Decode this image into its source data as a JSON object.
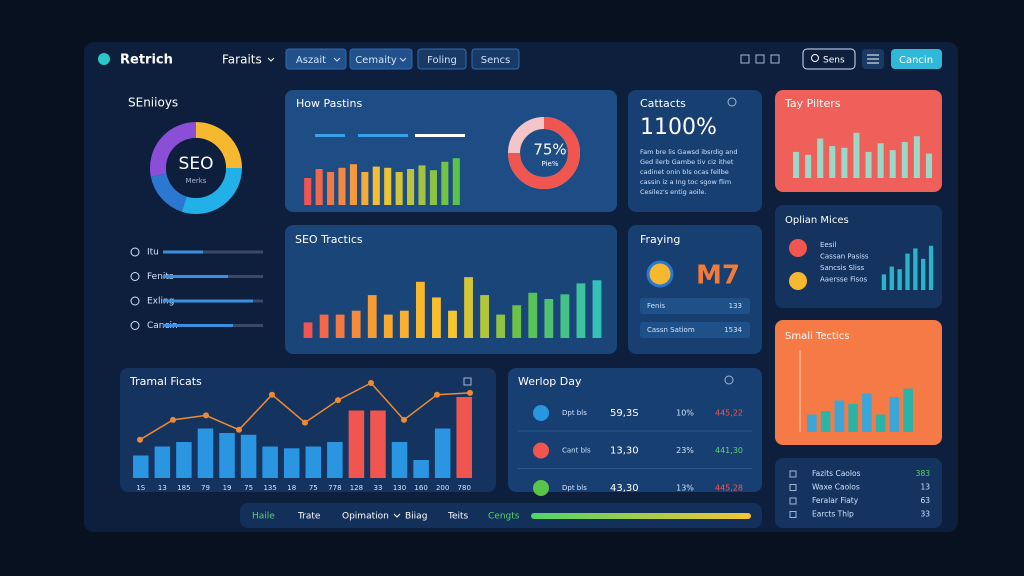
{
  "header": {
    "logo": "Retrich",
    "menu": "Faraits",
    "tabs": [
      "Aszait",
      "Cemaity",
      "Foling",
      "Sencs"
    ],
    "search": "Sens",
    "action": "Cancin"
  },
  "seo": {
    "title": "SEniioys",
    "donut_label": "SEO",
    "donut_sub": "Merks",
    "segments": [
      {
        "value": 25,
        "color": "#f5b82e"
      },
      {
        "value": 30,
        "color": "#22b0e8"
      },
      {
        "value": 17,
        "color": "#2a78d0"
      },
      {
        "value": 28,
        "color": "#8a4fd6"
      }
    ],
    "items": [
      {
        "label": "Itu",
        "value": 40
      },
      {
        "label": "Fenits",
        "value": 65
      },
      {
        "label": "Exling",
        "value": 90
      },
      {
        "label": "Cancin",
        "value": 70
      }
    ]
  },
  "how_pastins": {
    "title": "How Pastins",
    "bars": [
      45,
      60,
      55,
      62,
      68,
      55,
      64,
      62,
      55,
      60,
      66,
      58,
      72,
      78
    ],
    "colors": [
      "#f0564f",
      "#f7c531",
      "#5bc24a"
    ],
    "ring": {
      "value": 75,
      "label": "75%"
    },
    "ring_sub": "Pie%"
  },
  "cattacts": {
    "title": "Cattacts",
    "big": "1100%",
    "lines": [
      "Fam bre lis Gawsd ibsrdig and",
      "Ged ilerb Gambe tiv ciz ithet",
      "cadinet onin bls ocas fellbe",
      "cassin iz a Ing toc sgow flim",
      "Cesilez's entig aoile."
    ]
  },
  "tay_pilters": {
    "title": "Tay Pilters",
    "bars": [
      45,
      40,
      68,
      55,
      52,
      78,
      45,
      60,
      48,
      62,
      72,
      42
    ]
  },
  "seo_tractics": {
    "title": "SEO Tractics",
    "bars": [
      20,
      30,
      30,
      35,
      55,
      30,
      35,
      72,
      52,
      35,
      78,
      55,
      30,
      42,
      58,
      50,
      56,
      70,
      74
    ],
    "colors": [
      "#f0564f",
      "#f7a531",
      "#f7c531",
      "#5bc24a",
      "#34c2b8"
    ]
  },
  "fraying": {
    "title": "Fraying",
    "big": "M7",
    "rows": [
      {
        "label": "Fenis",
        "value": 133
      },
      {
        "label": "Cassn Satiom",
        "value": 1534
      }
    ]
  },
  "oplian": {
    "title": "Oplian Mices",
    "items": [
      "Eesil",
      "Cassan Pasiss",
      "Sancsis Sliss",
      "Aaersse Fisos"
    ],
    "bars": [
      30,
      45,
      40,
      70,
      80,
      60,
      85
    ]
  },
  "smali": {
    "title": "Smali Tectics",
    "bars": [
      25,
      30,
      45,
      40,
      55,
      25,
      50,
      62
    ],
    "colors": [
      "#3aa7d8",
      "#2bb3a8"
    ]
  },
  "tramal": {
    "title": "Tramal Ficats",
    "bars": [
      25,
      35,
      40,
      55,
      50,
      48,
      35,
      33,
      35,
      40,
      75,
      75,
      40,
      20,
      55,
      90
    ],
    "colors": [
      "#2a95e0",
      "#2a95e0",
      "#2a95e0",
      "#2a95e0",
      "#2a95e0",
      "#2a95e0",
      "#2a95e0",
      "#2a95e0",
      "#2a95e0",
      "#2a95e0",
      "#f0564f",
      "#f0564f",
      "#2a95e0",
      "#2a95e0",
      "#2a95e0",
      "#f0564f"
    ],
    "line": [
      37,
      59,
      64,
      48,
      87,
      56,
      81,
      100,
      59,
      87,
      89
    ],
    "labels": [
      "1S",
      "13",
      "185",
      "79",
      "19",
      "75",
      "135",
      "18",
      "75",
      "778",
      "128",
      "33",
      "130",
      "160",
      "200",
      "780"
    ]
  },
  "werlop": {
    "title": "Werlop Day",
    "rows": [
      {
        "name": "Dpt bls",
        "value": "59,3S",
        "pct": "10%",
        "delta": "445,22",
        "up": false
      },
      {
        "name": "Cant bls",
        "value": "13,30",
        "pct": "23%",
        "delta": "441,30",
        "up": true
      },
      {
        "name": "Dpt bls",
        "value": "43,30",
        "pct": "13%",
        "delta": "445,28",
        "up": false
      }
    ]
  },
  "table": {
    "rows": [
      [
        "Fazits Caolos",
        383
      ],
      [
        "Waxe Caolos",
        13
      ],
      [
        "Feralar Fiaty",
        63
      ],
      [
        "Earcts Thlp",
        33
      ]
    ]
  },
  "nav": {
    "items": [
      "Haile",
      "Trate",
      "Opimation",
      "Biiag",
      "Teits",
      "Cengts"
    ]
  }
}
